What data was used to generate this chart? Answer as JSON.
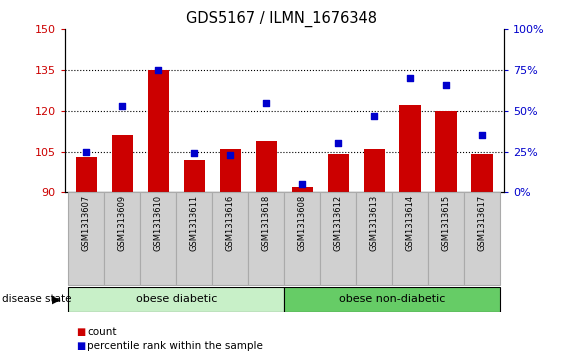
{
  "title": "GDS5167 / ILMN_1676348",
  "samples": [
    "GSM1313607",
    "GSM1313609",
    "GSM1313610",
    "GSM1313611",
    "GSM1313616",
    "GSM1313618",
    "GSM1313608",
    "GSM1313612",
    "GSM1313613",
    "GSM1313614",
    "GSM1313615",
    "GSM1313617"
  ],
  "counts": [
    103,
    111,
    135,
    102,
    106,
    109,
    92,
    104,
    106,
    122,
    120,
    104
  ],
  "percentiles": [
    25,
    53,
    75,
    24,
    23,
    55,
    5,
    30,
    47,
    70,
    66,
    35
  ],
  "ylim_left": [
    90,
    150
  ],
  "ylim_right": [
    0,
    100
  ],
  "yticks_left": [
    90,
    105,
    120,
    135,
    150
  ],
  "yticks_right": [
    0,
    25,
    50,
    75,
    100
  ],
  "bar_color": "#cc0000",
  "dot_color": "#0000cc",
  "bg_plot": "#ffffff",
  "bg_diabetic": "#c8f0c8",
  "bg_nondiabetic": "#66cc66",
  "group1_label": "obese diabetic",
  "group2_label": "obese non-diabetic",
  "group1_count": 6,
  "group2_count": 6,
  "disease_state_label": "disease state",
  "legend_count": "count",
  "legend_pct": "percentile rank within the sample",
  "hlines": [
    105,
    120,
    135
  ],
  "bar_color_red": "#cc2200",
  "dot_color_blue": "#0000cc",
  "label_bg": "#d0d0d0",
  "label_edge": "#aaaaaa"
}
